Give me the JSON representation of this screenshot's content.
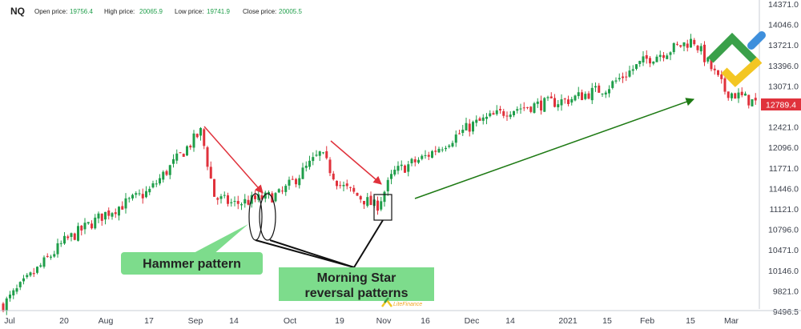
{
  "header": {
    "symbol": "NQ",
    "ohlc": [
      {
        "label": "Open price:",
        "value": "19756.4"
      },
      {
        "label": "High price:",
        "value": "20065.9"
      },
      {
        "label": "Low price:",
        "value": "19741.9"
      },
      {
        "label": "Close price:",
        "value": "20005.5"
      }
    ]
  },
  "colors": {
    "up": "#1f9e4a",
    "down": "#e0323c",
    "value_color": "#1f9e4a",
    "last_price_bg": "#e0323c",
    "callout_bg": "#7ddc8c",
    "trend_down": "#e0323c",
    "trend_up": "#1e7a14",
    "logo_green": "#3aa04a",
    "logo_yellow": "#f3c623",
    "logo_blue": "#3e8fdc"
  },
  "icons": {
    "logo": "litefinance-logo-icon",
    "watermark": "litefinance-watermark-icon"
  },
  "chart_data": {
    "type": "candlestick",
    "ylim": [
      9496.5,
      14371
    ],
    "y_ticks": [
      "14371.0",
      "14046.0",
      "13721.0",
      "13396.0",
      "13071.0",
      "12421.0",
      "12096.0",
      "11771.0",
      "11446.0",
      "11121.0",
      "10796.0",
      "10471.0",
      "10146.0",
      "9821.0",
      "9496.5"
    ],
    "last_price": "12789.4",
    "x_ticks": [
      "Jul",
      "20",
      "Aug",
      "17",
      "Sep",
      "14",
      "Oct",
      "19",
      "Nov",
      "16",
      "Dec",
      "14",
      "2021",
      "15",
      "Feb",
      "15",
      "Mar"
    ],
    "grid": false,
    "annotations": {
      "hammer_label": "Hammer pattern",
      "morning_star_label_1": "Morning Star",
      "morning_star_label_2": "reversal patterns",
      "watermark_text": "LiteFinance"
    },
    "anchors": [
      {
        "date": "Jul",
        "close": 9600
      },
      {
        "date": "20",
        "close": 10600
      },
      {
        "date": "Aug",
        "close": 11050
      },
      {
        "date": "17",
        "close": 11400
      },
      {
        "date": "Sep",
        "close": 12350
      },
      {
        "date": "Sep",
        "close": 11300
      },
      {
        "date": "14",
        "close": 11200
      },
      {
        "date": "Oct",
        "close": 11350
      },
      {
        "date": "Oct",
        "close": 12000
      },
      {
        "date": "19",
        "close": 11500
      },
      {
        "date": "Nov",
        "close": 11150
      },
      {
        "date": "Nov",
        "close": 11700
      },
      {
        "date": "16",
        "close": 11950
      },
      {
        "date": "Dec",
        "close": 12450
      },
      {
        "date": "14",
        "close": 12700
      },
      {
        "date": "2021",
        "close": 12850
      },
      {
        "date": "15",
        "close": 13050
      },
      {
        "date": "Feb",
        "close": 13500
      },
      {
        "date": "15",
        "close": 13800
      },
      {
        "date": "Mar",
        "close": 13000
      },
      {
        "date": "Mar",
        "close": 12789.4
      }
    ]
  }
}
